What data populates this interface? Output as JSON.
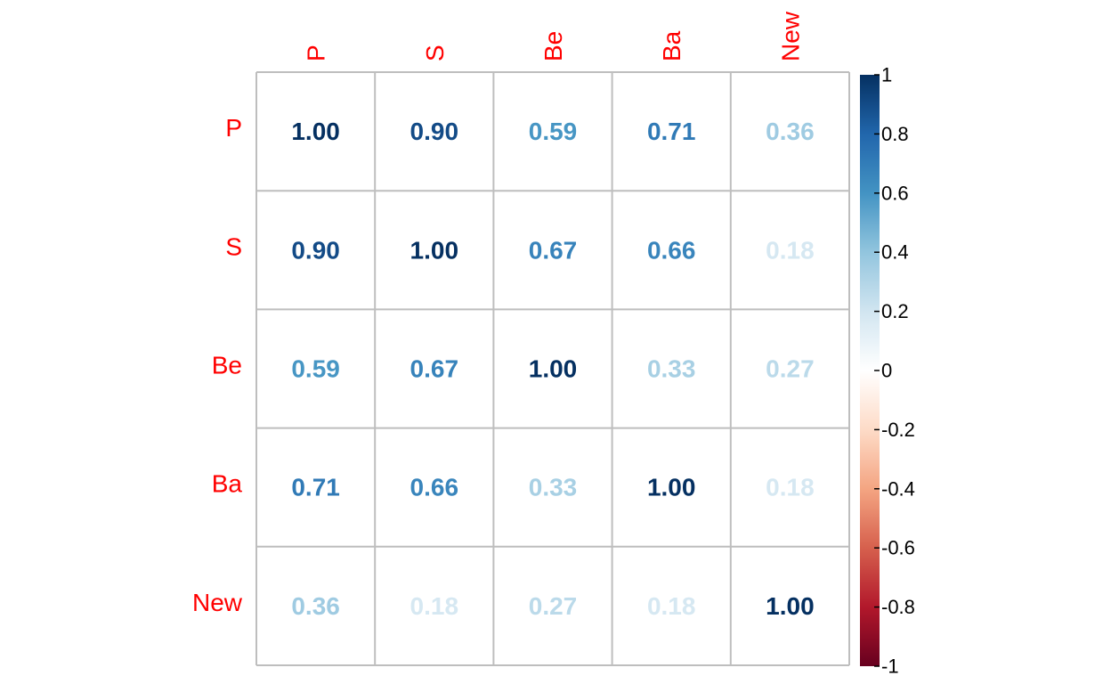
{
  "chart_data": {
    "type": "heatmap",
    "variables": [
      "P",
      "S",
      "Be",
      "Ba",
      "New"
    ],
    "matrix": [
      [
        1.0,
        0.9,
        0.59,
        0.71,
        0.36
      ],
      [
        0.9,
        1.0,
        0.67,
        0.66,
        0.18
      ],
      [
        0.59,
        0.67,
        1.0,
        0.33,
        0.27
      ],
      [
        0.71,
        0.66,
        0.33,
        1.0,
        0.18
      ],
      [
        0.36,
        0.18,
        0.27,
        0.18,
        1.0
      ]
    ],
    "value_labels": [
      [
        "1.00",
        "0.90",
        "0.59",
        "0.71",
        "0.36"
      ],
      [
        "0.90",
        "1.00",
        "0.67",
        "0.66",
        "0.18"
      ],
      [
        "0.59",
        "0.67",
        "1.00",
        "0.33",
        "0.27"
      ],
      [
        "0.71",
        "0.66",
        "0.33",
        "1.00",
        "0.18"
      ],
      [
        "0.36",
        "0.18",
        "0.27",
        "0.18",
        "1.00"
      ]
    ],
    "colorbar": {
      "range": [
        -1,
        1
      ],
      "ticks": [
        1,
        0.8,
        0.6,
        0.4,
        0.2,
        0,
        -0.2,
        -0.4,
        -0.6,
        -0.8,
        -1
      ],
      "tick_labels": [
        "1",
        "0.8",
        "0.6",
        "0.4",
        "0.2",
        "0",
        "-0.2",
        "-0.4",
        "-0.6",
        "-0.8",
        "-1"
      ],
      "position": "right"
    },
    "label_color": "#FF0000",
    "grid": true,
    "grid_color": "#BEBEBE",
    "palette": [
      "#67001F",
      "#B2182B",
      "#D6604D",
      "#F4A582",
      "#FDDBC7",
      "#FFFFFF",
      "#D1E5F0",
      "#92C5DE",
      "#4393C3",
      "#2166AC",
      "#053061"
    ]
  }
}
